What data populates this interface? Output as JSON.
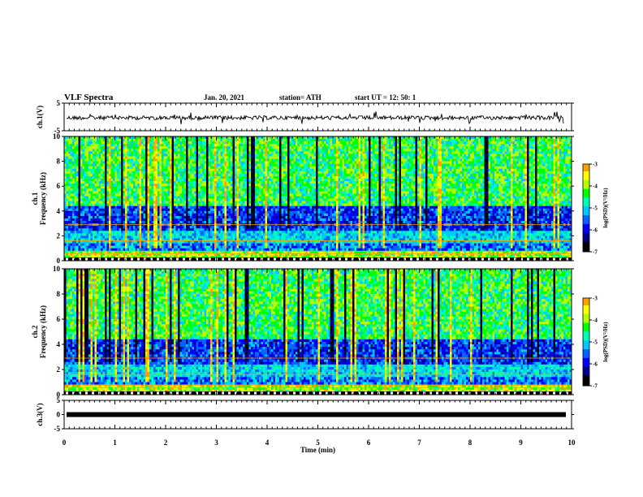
{
  "header": {
    "title": "VLF Spectra",
    "date": "Jan. 20, 2021",
    "station": "station= ATH",
    "start": "start  UT =   12: 50: 1"
  },
  "chart_data": [
    {
      "type": "line",
      "name": "ch1-waveform",
      "ylabel": "ch.1(V)",
      "ylim": [
        -5,
        5
      ],
      "yticks": [
        "5",
        "-5"
      ],
      "xlim": [
        0,
        10
      ],
      "description_values": {
        "baseline": 0,
        "noise_amplitude": 1
      }
    },
    {
      "type": "heatmap",
      "name": "ch1-spectrogram",
      "ylabel": "ch.1\nFrequency (kHz)",
      "ylim": [
        0,
        10
      ],
      "yticks": [
        "0",
        "2",
        "4",
        "6",
        "8",
        "10"
      ],
      "xlim": [
        0,
        10
      ],
      "colorbar": {
        "label": "log(PSD)(V²/Hz)",
        "range": [
          -7,
          -3
        ],
        "ticks": [
          "-3",
          "-4",
          "-5",
          "-6",
          "-7"
        ]
      }
    },
    {
      "type": "heatmap",
      "name": "ch2-spectrogram",
      "ylabel": "ch.2\nFrequency (kHz)",
      "ylim": [
        0,
        10
      ],
      "yticks": [
        "0",
        "2",
        "4",
        "6",
        "8",
        "10"
      ],
      "xlim": [
        0,
        10
      ],
      "colorbar": {
        "label": "log(PSD)(V²/Hz)",
        "range": [
          -7,
          -3
        ],
        "ticks": [
          "-3",
          "-4",
          "-5",
          "-6",
          "-7"
        ]
      }
    },
    {
      "type": "line",
      "name": "ch3-waveform",
      "ylabel": "ch.3(V)",
      "ylim": [
        -5,
        5
      ],
      "yticks": [
        "5",
        "0",
        "-5"
      ],
      "xlim": [
        0,
        10
      ],
      "xlabel": "Time  (min)",
      "xticks": [
        "0",
        "1",
        "2",
        "3",
        "4",
        "5",
        "6",
        "7",
        "8",
        "9",
        "10"
      ],
      "values": {
        "constant": 0
      }
    }
  ],
  "colors": {
    "palette": [
      "#000000",
      "#00008b",
      "#0000ff",
      "#0064ff",
      "#00c8ff",
      "#00ffb4",
      "#00ff00",
      "#b4ff00",
      "#ffff00",
      "#ffa000",
      "#ff0000",
      "#ffffff"
    ]
  }
}
